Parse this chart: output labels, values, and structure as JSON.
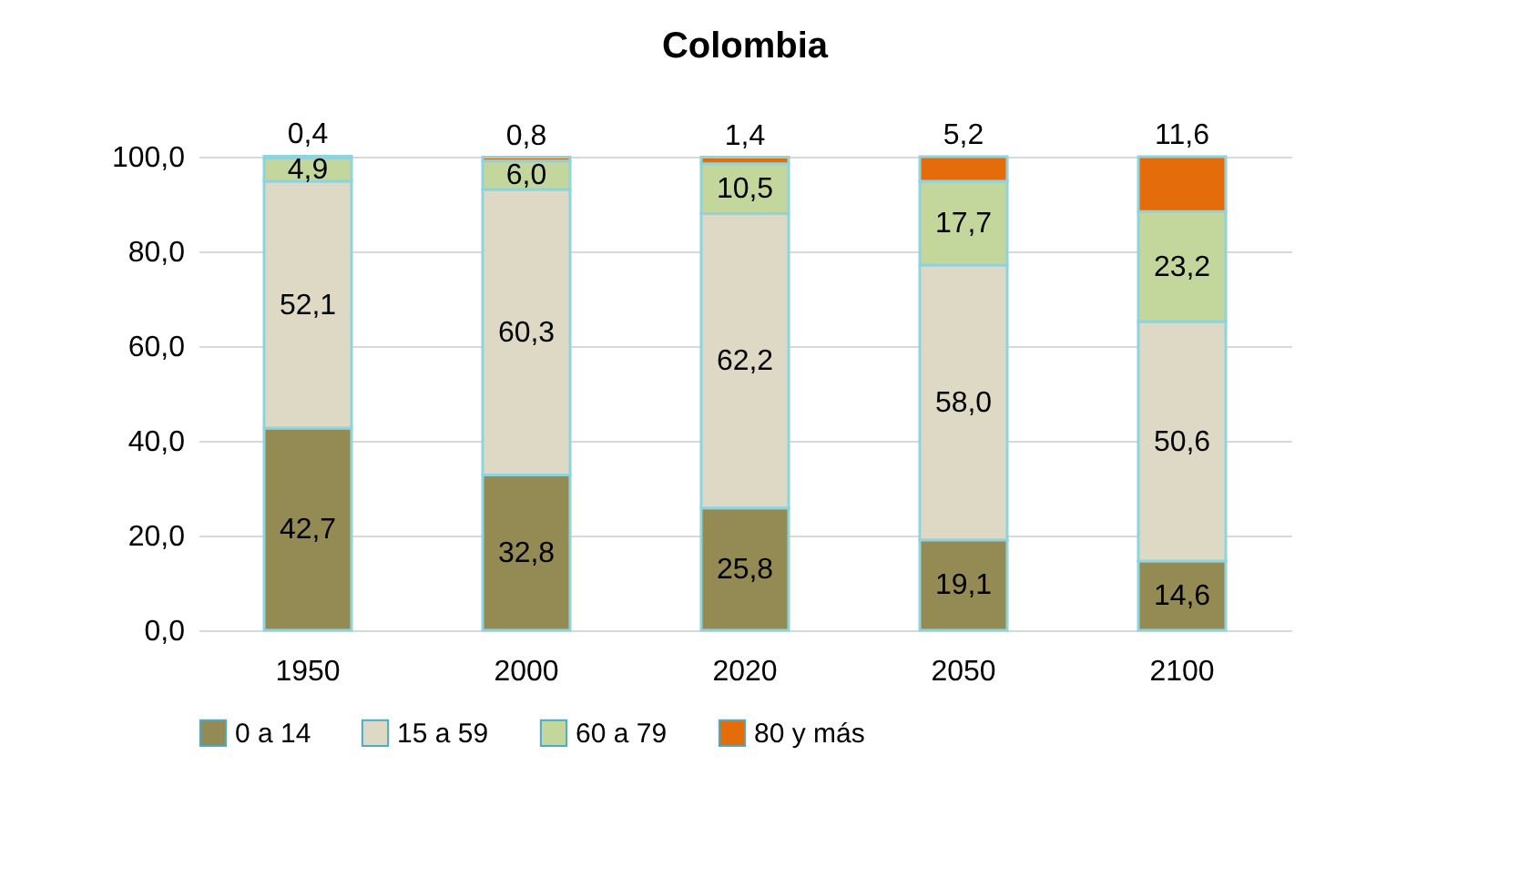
{
  "chart_data": {
    "type": "bar",
    "title": "Colombia",
    "stacked": true,
    "categories": [
      "1950",
      "2000",
      "2020",
      "2050",
      "2100"
    ],
    "series": [
      {
        "name": "0 a 14",
        "color": "#948a54",
        "values": [
          42.7,
          32.8,
          25.8,
          19.1,
          14.6
        ],
        "value_labels": [
          "42,7",
          "32,8",
          "25,8",
          "19,1",
          "14,6"
        ]
      },
      {
        "name": "15 a 59",
        "color": "#ddd9c4",
        "values": [
          52.1,
          60.3,
          62.2,
          58.0,
          50.6
        ],
        "value_labels": [
          "52,1",
          "60,3",
          "62,2",
          "58,0",
          "50,6"
        ]
      },
      {
        "name": "60 a 79",
        "color": "#c3d69b",
        "values": [
          4.9,
          6.0,
          10.5,
          17.7,
          23.2
        ],
        "value_labels": [
          "4,9",
          "6,0",
          "10,5",
          "17,7",
          "23,2"
        ]
      },
      {
        "name": "80 y más",
        "color": "#e46c0a",
        "values": [
          0.4,
          0.8,
          1.4,
          5.2,
          11.6
        ],
        "value_labels": [
          "0,4",
          "0,8",
          "1,4",
          "5,2",
          "11,6"
        ]
      }
    ],
    "ylim": [
      0,
      100
    ],
    "yticks": [
      {
        "value": 0,
        "label": "0,0"
      },
      {
        "value": 20,
        "label": "20,0"
      },
      {
        "value": 40,
        "label": "40,0"
      },
      {
        "value": 60,
        "label": "60,0"
      },
      {
        "value": 80,
        "label": "80,0"
      },
      {
        "value": 100,
        "label": "100,0"
      }
    ],
    "grid": "y",
    "legend": "bottom"
  }
}
